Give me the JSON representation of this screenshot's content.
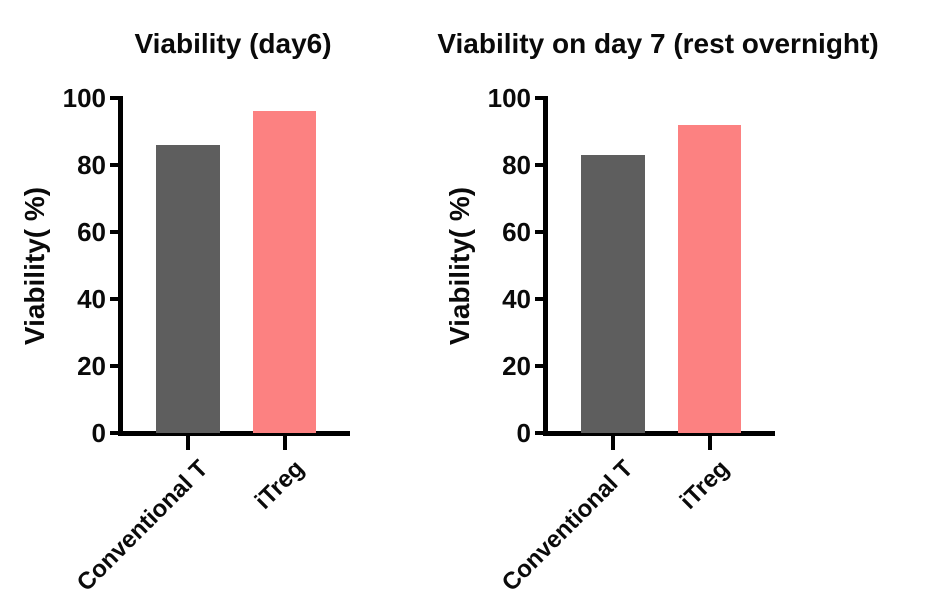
{
  "chart_data": [
    {
      "type": "bar",
      "title": "Viability (day6)",
      "ylabel": "Viability( %)",
      "xlabel": "",
      "categories": [
        "Conventional T",
        "iTreg"
      ],
      "values": [
        86,
        96
      ],
      "ylim": [
        0,
        100
      ],
      "yticks": [
        0,
        20,
        40,
        60,
        80,
        100
      ],
      "bar_colors": [
        "#5E5E5E",
        "#FC8181"
      ],
      "axis_color": "#000000",
      "grid": "off",
      "legend": "none"
    },
    {
      "type": "bar",
      "title": "Viability on day 7 (rest overnight)",
      "ylabel": "Viability( %)",
      "xlabel": "",
      "categories": [
        "Conventional T",
        "iTreg"
      ],
      "values": [
        83,
        92
      ],
      "ylim": [
        0,
        100
      ],
      "yticks": [
        0,
        20,
        40,
        60,
        80,
        100
      ],
      "bar_colors": [
        "#5E5E5E",
        "#FC8181"
      ],
      "axis_color": "#000000",
      "grid": "off",
      "legend": "none"
    }
  ]
}
